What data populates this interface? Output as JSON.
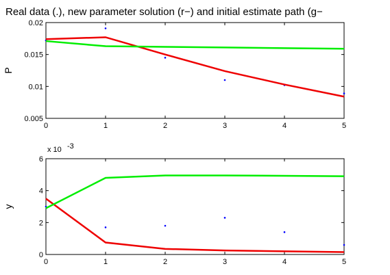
{
  "title": "Real data (.), new parameter solution (r−) and initial estimate path (g−",
  "colors": {
    "data": "#0000ff",
    "solution": "#ee0000",
    "initial": "#00ee00"
  },
  "chart_data": [
    {
      "type": "line",
      "ylabel": "P",
      "xlim": [
        0,
        5
      ],
      "ylim": [
        0.005,
        0.02
      ],
      "xticks": [
        0,
        1,
        2,
        3,
        4,
        5
      ],
      "xtick_labels": [
        "0",
        "1",
        "2",
        "3",
        "4",
        "5"
      ],
      "yticks": [
        0.005,
        0.01,
        0.015,
        0.02
      ],
      "ytick_labels": [
        "0.005",
        "0.01",
        "0.015",
        "0.02"
      ],
      "y_exponent_label": "",
      "grid": false,
      "series": [
        {
          "role": "data",
          "style": "points",
          "x": [
            0,
            1,
            2,
            3,
            4,
            5
          ],
          "values": [
            0.0172,
            0.0191,
            0.0145,
            0.011,
            0.0102,
            0.0089
          ]
        },
        {
          "role": "solution",
          "style": "line",
          "x": [
            0,
            1,
            2,
            3,
            4,
            5
          ],
          "values": [
            0.0174,
            0.0177,
            0.015,
            0.0124,
            0.0103,
            0.0084
          ]
        },
        {
          "role": "initial",
          "style": "line",
          "x": [
            0,
            1,
            2,
            3,
            4,
            5
          ],
          "values": [
            0.0171,
            0.0163,
            0.0162,
            0.0161,
            0.016,
            0.0159
          ]
        }
      ]
    },
    {
      "type": "line",
      "ylabel": "y",
      "xlim": [
        0,
        5
      ],
      "ylim": [
        0,
        6
      ],
      "xticks": [
        0,
        1,
        2,
        3,
        4,
        5
      ],
      "xtick_labels": [
        "0",
        "1",
        "2",
        "3",
        "4",
        "5"
      ],
      "yticks": [
        0,
        2,
        4,
        6
      ],
      "ytick_labels": [
        "0",
        "2",
        "4",
        "6"
      ],
      "y_exponent_label": "x 10",
      "y_exponent_power": "-3",
      "grid": false,
      "series": [
        {
          "role": "data",
          "style": "points",
          "x": [
            0,
            1,
            2,
            3,
            4,
            5
          ],
          "values": [
            3.0,
            1.7,
            1.8,
            2.3,
            1.4,
            0.6
          ]
        },
        {
          "role": "solution",
          "style": "line",
          "x": [
            0,
            1,
            2,
            3,
            4,
            5
          ],
          "values": [
            3.5,
            0.75,
            0.35,
            0.25,
            0.2,
            0.15
          ]
        },
        {
          "role": "initial",
          "style": "line",
          "x": [
            0,
            1,
            2,
            3,
            4,
            5
          ],
          "values": [
            2.9,
            4.8,
            4.95,
            4.95,
            4.93,
            4.9
          ]
        }
      ]
    }
  ]
}
